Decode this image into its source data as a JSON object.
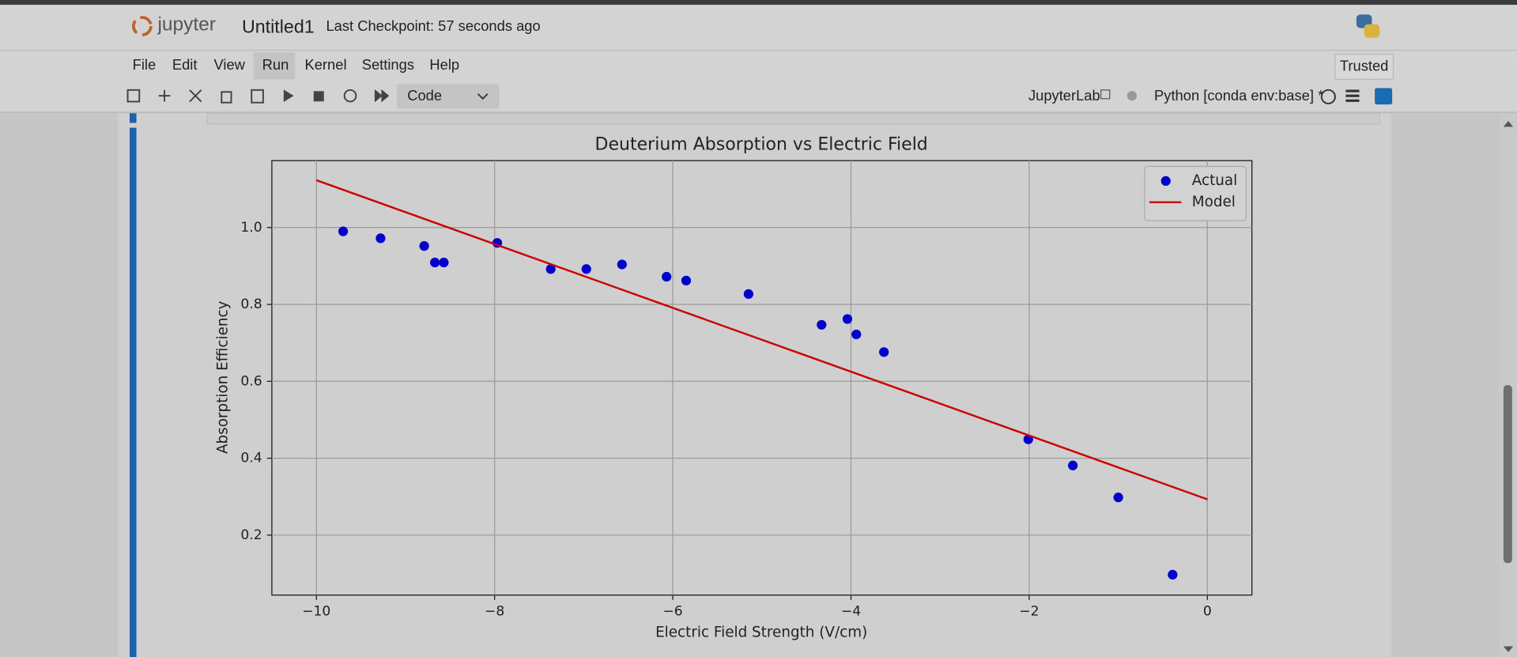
{
  "header": {
    "logo_text": "jupyter",
    "notebook_name": "Untitled1",
    "checkpoint": "Last Checkpoint: 57 seconds ago"
  },
  "menu": [
    "File",
    "Edit",
    "View",
    "Run",
    "Kernel",
    "Settings",
    "Help"
  ],
  "trusted": "Trusted",
  "toolbar": {
    "cell_type": "Code",
    "jupyterlab": "JupyterLab",
    "kernel": "Python [conda env:base] *"
  },
  "chart_data": {
    "type": "scatter",
    "title": "Deuterium Absorption vs Electric Field",
    "x_label": "Electric Field Strength (V/cm)",
    "y_label": "Absorption Efficiency",
    "xlim": [
      -10.5,
      0.5
    ],
    "ylim": [
      0.044,
      1.174
    ],
    "xticks": [
      {
        "value": -10,
        "label": "−10"
      },
      {
        "value": -8,
        "label": "−8"
      },
      {
        "value": -6,
        "label": "−6"
      },
      {
        "value": -4,
        "label": "−4"
      },
      {
        "value": -2,
        "label": "−2"
      },
      0
    ],
    "yticks": [
      0.2,
      0.4,
      0.6,
      0.8,
      {
        "value": 1,
        "label": "1.0"
      }
    ],
    "grid": true,
    "legend": "upper right",
    "series": [
      {
        "name": "Actual",
        "type": "scatter",
        "color": "#0000cc",
        "x": [
          -9.7,
          -9.28,
          -8.79,
          -8.67,
          -8.57,
          -7.97,
          -7.37,
          -6.97,
          -6.57,
          -6.07,
          -5.85,
          -5.15,
          -4.33,
          -4.04,
          -3.94,
          -3.63,
          -2.01,
          -1.51,
          -1.0,
          -0.39
        ],
        "values": [
          0.99,
          0.972,
          0.952,
          0.909,
          0.909,
          0.96,
          0.892,
          0.892,
          0.904,
          0.872,
          0.862,
          0.827,
          0.747,
          0.762,
          0.722,
          0.676,
          0.449,
          0.381,
          0.298,
          0.097
        ]
      },
      {
        "name": "Model",
        "type": "line",
        "color": "#cc0000",
        "x": [
          -10,
          0
        ],
        "values": [
          1.123,
          0.293
        ]
      }
    ]
  }
}
